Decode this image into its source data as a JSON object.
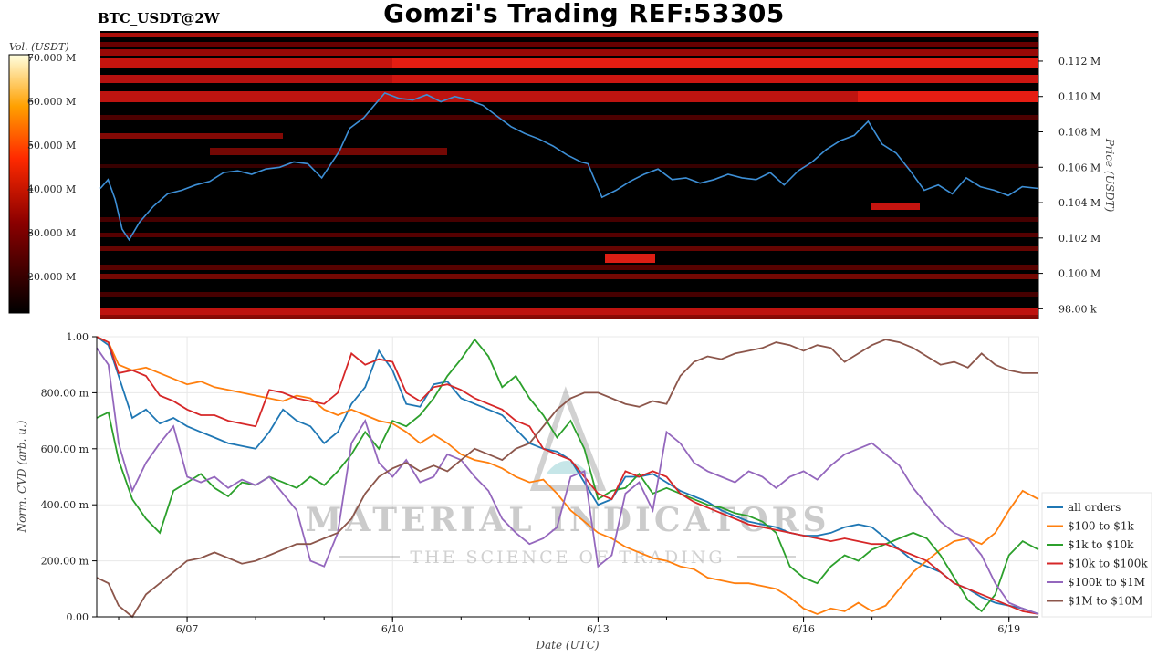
{
  "header": {
    "title": "Gomzi's Trading REF:53305",
    "symbol": "BTC_USDT@2W"
  },
  "colorbar": {
    "label": "Vol. (USDT)",
    "ticks": [
      "70.000 M",
      "60.000 M",
      "50.000 M",
      "40.000 M",
      "30.000 M",
      "20.000 M"
    ]
  },
  "watermark": {
    "line1": "MATERIAL INDICATORS",
    "line2": "THE SCIENCE OF TRADING"
  },
  "chart_data": [
    {
      "type": "heatmap",
      "title": "",
      "ylabel": "Price (USDT)",
      "y_ticks": [
        "0.112 M",
        "0.110 M",
        "0.108 M",
        "0.106 M",
        "0.104 M",
        "0.102 M",
        "0.100 M",
        "98.00 k"
      ],
      "y_tick_values": [
        112000,
        110000,
        108000,
        106000,
        104000,
        102000,
        100000,
        98000
      ],
      "ylim": [
        97400,
        113700
      ],
      "x_range_days": [
        6.04,
        19.43
      ],
      "series": [
        {
          "name": "price",
          "x": [
            6.04,
            6.15,
            6.25,
            6.35,
            6.45,
            6.6,
            6.8,
            7.0,
            7.2,
            7.4,
            7.6,
            7.8,
            8.0,
            8.2,
            8.4,
            8.6,
            8.8,
            9.0,
            9.2,
            9.45,
            9.6,
            9.8,
            9.95,
            10.1,
            10.3,
            10.5,
            10.7,
            10.9,
            11.1,
            11.3,
            11.5,
            11.7,
            11.9,
            12.1,
            12.3,
            12.5,
            12.7,
            12.9,
            13.0,
            13.2,
            13.4,
            13.6,
            13.8,
            14.0,
            14.2,
            14.4,
            14.6,
            14.8,
            15.0,
            15.2,
            15.4,
            15.6,
            15.8,
            16.0,
            16.2,
            16.4,
            16.6,
            16.8,
            17.0,
            17.2,
            17.4,
            17.6,
            17.8,
            18.0,
            18.2,
            18.4,
            18.6,
            18.8,
            19.0,
            19.2,
            19.43
          ],
          "y": [
            104800,
            105300,
            104200,
            102500,
            101900,
            102900,
            103800,
            104500,
            104700,
            105000,
            105200,
            105700,
            105800,
            105600,
            105900,
            106000,
            106300,
            106200,
            105400,
            106900,
            108200,
            108800,
            109500,
            110200,
            109900,
            109800,
            110100,
            109700,
            110000,
            109800,
            109500,
            108900,
            108300,
            107900,
            107600,
            107200,
            106700,
            106300,
            106200,
            104300,
            104700,
            105200,
            105600,
            105900,
            105300,
            105400,
            105100,
            105300,
            105600,
            105400,
            105300,
            105700,
            105000,
            105800,
            106300,
            107000,
            107500,
            107800,
            108600,
            107300,
            106800,
            105800,
            104700,
            105000,
            104500,
            105400,
            104900,
            104700,
            104400,
            104900,
            104800
          ]
        }
      ],
      "legend": "none"
    },
    {
      "type": "line",
      "title": "",
      "xlabel": "Date (UTC)",
      "ylabel": "Norm. CVD (arb. u.)",
      "x_ticks": [
        "6/07",
        "6/10",
        "6/13",
        "6/16",
        "6/19"
      ],
      "x_tick_values": [
        7,
        10,
        13,
        16,
        19
      ],
      "y_ticks": [
        "1.00",
        "800.00 m",
        "600.00 m",
        "400.00 m",
        "200.00 m",
        "0.00"
      ],
      "y_tick_values": [
        1.0,
        0.8,
        0.6,
        0.4,
        0.2,
        0.0
      ],
      "ylim": [
        0,
        1
      ],
      "xlim": [
        5.68,
        19.43
      ],
      "grid": true,
      "legend": "right",
      "x": [
        5.68,
        5.85,
        6.0,
        6.2,
        6.4,
        6.6,
        6.8,
        7.0,
        7.2,
        7.4,
        7.6,
        7.8,
        8.0,
        8.2,
        8.4,
        8.6,
        8.8,
        9.0,
        9.2,
        9.4,
        9.6,
        9.8,
        10.0,
        10.2,
        10.4,
        10.6,
        10.8,
        11.0,
        11.2,
        11.4,
        11.6,
        11.8,
        12.0,
        12.2,
        12.4,
        12.6,
        12.8,
        13.0,
        13.2,
        13.4,
        13.6,
        13.8,
        14.0,
        14.2,
        14.4,
        14.6,
        14.8,
        15.0,
        15.2,
        15.4,
        15.6,
        15.8,
        16.0,
        16.2,
        16.4,
        16.6,
        16.8,
        17.0,
        17.2,
        17.4,
        17.6,
        17.8,
        18.0,
        18.2,
        18.4,
        18.6,
        18.8,
        19.0,
        19.2,
        19.43
      ],
      "series": [
        {
          "name": "all orders",
          "color": "#1f77b4",
          "values": [
            1.0,
            0.97,
            0.86,
            0.71,
            0.74,
            0.69,
            0.71,
            0.68,
            0.66,
            0.64,
            0.62,
            0.61,
            0.6,
            0.66,
            0.74,
            0.7,
            0.68,
            0.62,
            0.66,
            0.76,
            0.82,
            0.95,
            0.88,
            0.76,
            0.75,
            0.83,
            0.84,
            0.78,
            0.76,
            0.74,
            0.72,
            0.67,
            0.62,
            0.6,
            0.59,
            0.56,
            0.48,
            0.4,
            0.42,
            0.5,
            0.5,
            0.51,
            0.48,
            0.45,
            0.43,
            0.41,
            0.38,
            0.36,
            0.34,
            0.33,
            0.32,
            0.3,
            0.29,
            0.29,
            0.3,
            0.32,
            0.33,
            0.32,
            0.28,
            0.24,
            0.2,
            0.18,
            0.16,
            0.12,
            0.1,
            0.07,
            0.05,
            0.04,
            0.03,
            0.01
          ]
        },
        {
          "name": "$100 to $1k",
          "color": "#ff7f0e",
          "values": [
            1.0,
            0.98,
            0.9,
            0.88,
            0.89,
            0.87,
            0.85,
            0.83,
            0.84,
            0.82,
            0.81,
            0.8,
            0.79,
            0.78,
            0.77,
            0.79,
            0.78,
            0.74,
            0.72,
            0.74,
            0.72,
            0.7,
            0.69,
            0.66,
            0.62,
            0.65,
            0.62,
            0.58,
            0.56,
            0.55,
            0.53,
            0.5,
            0.48,
            0.49,
            0.44,
            0.38,
            0.34,
            0.3,
            0.28,
            0.25,
            0.23,
            0.21,
            0.2,
            0.18,
            0.17,
            0.14,
            0.13,
            0.12,
            0.12,
            0.11,
            0.1,
            0.07,
            0.03,
            0.01,
            0.03,
            0.02,
            0.05,
            0.02,
            0.04,
            0.1,
            0.16,
            0.2,
            0.24,
            0.27,
            0.28,
            0.26,
            0.3,
            0.38,
            0.45,
            0.42
          ]
        },
        {
          "name": "$1k to $10k",
          "color": "#2ca02c",
          "values": [
            0.71,
            0.73,
            0.56,
            0.42,
            0.35,
            0.3,
            0.45,
            0.48,
            0.51,
            0.46,
            0.43,
            0.48,
            0.47,
            0.5,
            0.48,
            0.46,
            0.5,
            0.47,
            0.52,
            0.58,
            0.66,
            0.6,
            0.7,
            0.68,
            0.72,
            0.78,
            0.86,
            0.92,
            0.99,
            0.93,
            0.82,
            0.86,
            0.78,
            0.72,
            0.64,
            0.7,
            0.6,
            0.42,
            0.45,
            0.46,
            0.51,
            0.44,
            0.46,
            0.44,
            0.42,
            0.4,
            0.39,
            0.37,
            0.36,
            0.34,
            0.3,
            0.18,
            0.14,
            0.12,
            0.18,
            0.22,
            0.2,
            0.24,
            0.26,
            0.28,
            0.3,
            0.28,
            0.22,
            0.14,
            0.06,
            0.02,
            0.08,
            0.22,
            0.27,
            0.24
          ]
        },
        {
          "name": "$10k to $100k",
          "color": "#d62728",
          "values": [
            1.0,
            0.98,
            0.87,
            0.88,
            0.86,
            0.79,
            0.77,
            0.74,
            0.72,
            0.72,
            0.7,
            0.69,
            0.68,
            0.81,
            0.8,
            0.78,
            0.77,
            0.76,
            0.8,
            0.94,
            0.9,
            0.92,
            0.91,
            0.8,
            0.77,
            0.82,
            0.83,
            0.81,
            0.78,
            0.76,
            0.74,
            0.7,
            0.68,
            0.6,
            0.58,
            0.56,
            0.5,
            0.44,
            0.42,
            0.52,
            0.5,
            0.52,
            0.5,
            0.44,
            0.41,
            0.39,
            0.37,
            0.35,
            0.33,
            0.32,
            0.31,
            0.3,
            0.29,
            0.28,
            0.27,
            0.28,
            0.27,
            0.26,
            0.26,
            0.24,
            0.22,
            0.2,
            0.16,
            0.12,
            0.1,
            0.08,
            0.06,
            0.04,
            0.02,
            0.01
          ]
        },
        {
          "name": "$100k to $1M",
          "color": "#9467bd",
          "values": [
            0.96,
            0.9,
            0.62,
            0.45,
            0.55,
            0.62,
            0.68,
            0.5,
            0.48,
            0.5,
            0.46,
            0.49,
            0.47,
            0.5,
            0.44,
            0.38,
            0.2,
            0.18,
            0.3,
            0.62,
            0.7,
            0.55,
            0.5,
            0.56,
            0.48,
            0.5,
            0.58,
            0.56,
            0.5,
            0.45,
            0.35,
            0.3,
            0.26,
            0.28,
            0.32,
            0.5,
            0.52,
            0.18,
            0.22,
            0.44,
            0.48,
            0.38,
            0.66,
            0.62,
            0.55,
            0.52,
            0.5,
            0.48,
            0.52,
            0.5,
            0.46,
            0.5,
            0.52,
            0.49,
            0.54,
            0.58,
            0.6,
            0.62,
            0.58,
            0.54,
            0.46,
            0.4,
            0.34,
            0.3,
            0.28,
            0.22,
            0.12,
            0.05,
            0.03,
            0.01
          ]
        },
        {
          "name": "$1M to $10M",
          "color": "#8c564b",
          "values": [
            0.14,
            0.12,
            0.04,
            0.0,
            0.08,
            0.12,
            0.16,
            0.2,
            0.21,
            0.23,
            0.21,
            0.19,
            0.2,
            0.22,
            0.24,
            0.26,
            0.26,
            0.28,
            0.3,
            0.35,
            0.44,
            0.5,
            0.53,
            0.55,
            0.52,
            0.54,
            0.52,
            0.56,
            0.6,
            0.58,
            0.56,
            0.6,
            0.62,
            0.68,
            0.74,
            0.78,
            0.8,
            0.8,
            0.78,
            0.76,
            0.75,
            0.77,
            0.76,
            0.86,
            0.91,
            0.93,
            0.92,
            0.94,
            0.95,
            0.96,
            0.98,
            0.97,
            0.95,
            0.97,
            0.96,
            0.91,
            0.94,
            0.97,
            0.99,
            0.98,
            0.96,
            0.93,
            0.9,
            0.91,
            0.89,
            0.94,
            0.9,
            0.88,
            0.87,
            0.87
          ]
        }
      ]
    }
  ]
}
